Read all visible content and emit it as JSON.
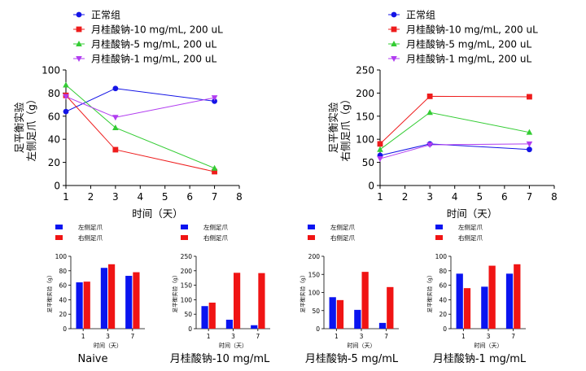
{
  "colors": {
    "normal": "#1414e6",
    "dose10": "#ee1c1c",
    "dose5": "#33cc33",
    "dose1": "#b13cf0",
    "left_bar": "#0a14f0",
    "right_bar": "#f01414"
  },
  "legend": {
    "items": [
      {
        "key": "normal",
        "label": "正常组",
        "marker": "circle"
      },
      {
        "key": "dose10",
        "label": "月桂酸钠-10 mg/mL, 200 uL",
        "marker": "square"
      },
      {
        "key": "dose5",
        "label": "月桂酸钠-5 mg/mL, 200 uL",
        "marker": "triangle-up"
      },
      {
        "key": "dose1",
        "label": "月桂酸钠-1 mg/mL, 200 uL",
        "marker": "triangle-down"
      }
    ]
  },
  "bar_legend": {
    "left": "左侧足爪",
    "right": "右侧足爪"
  },
  "chart_data": [
    {
      "type": "line",
      "id": "left-paw-line",
      "ylabel": [
        "足平衡实验",
        "左侧足爪（g）"
      ],
      "xlabel": "时间（天）",
      "xlim": [
        1,
        8
      ],
      "xticks": [
        1,
        2,
        3,
        4,
        5,
        6,
        7,
        8
      ],
      "ylim": [
        0,
        100
      ],
      "yticks": [
        0,
        20,
        40,
        60,
        80,
        100
      ],
      "x": [
        1,
        3,
        7
      ],
      "series": [
        {
          "key": "normal",
          "name": "正常组",
          "values": [
            64,
            84,
            73
          ]
        },
        {
          "key": "dose10",
          "name": "月桂酸钠-10 mg/mL, 200 uL",
          "values": [
            78,
            31,
            12
          ]
        },
        {
          "key": "dose5",
          "name": "月桂酸钠-5 mg/mL, 200 uL",
          "values": [
            87,
            50,
            15
          ]
        },
        {
          "key": "dose1",
          "name": "月桂酸钠-1 mg/mL, 200 uL",
          "values": [
            77,
            59,
            76
          ]
        }
      ]
    },
    {
      "type": "line",
      "id": "right-paw-line",
      "ylabel": [
        "足平衡实验",
        "右侧足爪（g）"
      ],
      "xlabel": "时间（天）",
      "xlim": [
        1,
        8
      ],
      "xticks": [
        1,
        2,
        3,
        4,
        5,
        6,
        7,
        8
      ],
      "ylim": [
        0,
        250
      ],
      "yticks": [
        0,
        50,
        100,
        150,
        200,
        250
      ],
      "x": [
        1,
        3,
        7
      ],
      "series": [
        {
          "key": "normal",
          "name": "正常组",
          "values": [
            65,
            90,
            78
          ]
        },
        {
          "key": "dose10",
          "name": "月桂酸钠-10 mg/mL, 200 uL",
          "values": [
            90,
            193,
            192
          ]
        },
        {
          "key": "dose5",
          "name": "月桂酸钠-5 mg/mL, 200 uL",
          "values": [
            78,
            158,
            115
          ]
        },
        {
          "key": "dose1",
          "name": "月桂酸钠-1 mg/mL, 200 uL",
          "values": [
            58,
            88,
            90
          ]
        }
      ]
    },
    {
      "type": "bar",
      "id": "bar-naive",
      "caption": "Naive",
      "ylabel": "足平衡实验（g）",
      "xlabel": "时间（天）",
      "categories": [
        "1",
        "3",
        "7"
      ],
      "ylim": [
        0,
        100
      ],
      "yticks": [
        0,
        20,
        40,
        60,
        80,
        100
      ],
      "series": [
        {
          "key": "left_bar",
          "name": "左侧足爪",
          "values": [
            64,
            84,
            73
          ]
        },
        {
          "key": "right_bar",
          "name": "右侧足爪",
          "values": [
            65,
            89,
            78
          ]
        }
      ]
    },
    {
      "type": "bar",
      "id": "bar-dose10",
      "caption": "月桂酸钠-10 mg/mL",
      "ylabel": "足平衡实验（g）",
      "xlabel": "时间（天）",
      "categories": [
        "1",
        "3",
        "7"
      ],
      "ylim": [
        0,
        250
      ],
      "yticks": [
        0,
        50,
        100,
        150,
        200,
        250
      ],
      "series": [
        {
          "key": "left_bar",
          "name": "左侧足爪",
          "values": [
            78,
            31,
            12
          ]
        },
        {
          "key": "right_bar",
          "name": "右侧足爪",
          "values": [
            90,
            193,
            192
          ]
        }
      ]
    },
    {
      "type": "bar",
      "id": "bar-dose5",
      "caption": "月桂酸钠-5 mg/mL",
      "ylabel": "足平衡实验（g）",
      "xlabel": "时间（天）",
      "categories": [
        "1",
        "3",
        "7"
      ],
      "ylim": [
        0,
        200
      ],
      "yticks": [
        0,
        50,
        100,
        150,
        200
      ],
      "series": [
        {
          "key": "left_bar",
          "name": "左侧足爪",
          "values": [
            87,
            52,
            16
          ]
        },
        {
          "key": "right_bar",
          "name": "右侧足爪",
          "values": [
            79,
            157,
            115
          ]
        }
      ]
    },
    {
      "type": "bar",
      "id": "bar-dose1",
      "caption": "月桂酸钠-1 mg/mL",
      "ylabel": "足平衡实验（g）",
      "xlabel": "时间（天）",
      "categories": [
        "1",
        "3",
        "7"
      ],
      "ylim": [
        0,
        100
      ],
      "yticks": [
        0,
        20,
        40,
        60,
        80,
        100
      ],
      "series": [
        {
          "key": "left_bar",
          "name": "左侧足爪",
          "values": [
            76,
            58,
            76
          ]
        },
        {
          "key": "right_bar",
          "name": "右侧足爪",
          "values": [
            56,
            87,
            89
          ]
        }
      ]
    }
  ]
}
